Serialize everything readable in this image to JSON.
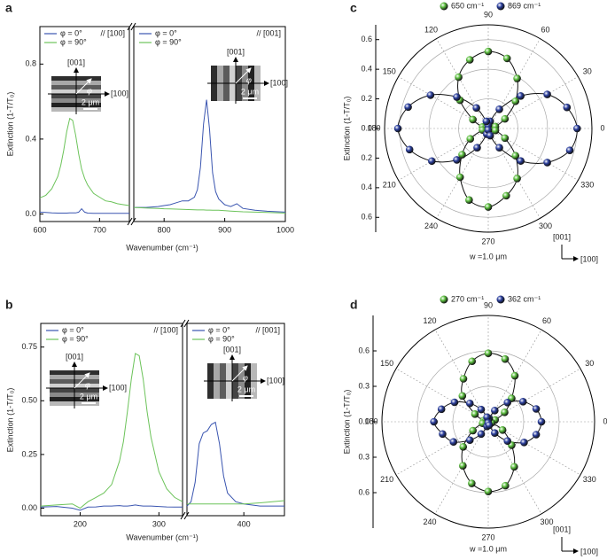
{
  "chart_data": [
    {
      "type": "line",
      "label": "a",
      "xlabel": "Wavenumber (cm⁻¹)",
      "ylabel": "Extinction (1-T/T₀)",
      "annotation": "// [100]",
      "inset": {
        "stripes": "horizontal",
        "labels": [
          "[001]",
          "[100]",
          "φ",
          "2 μm"
        ]
      },
      "xlim": [
        600,
        750
      ],
      "xticks": [
        600,
        700
      ],
      "ylim": [
        -0.04,
        1.0
      ],
      "yticks": [
        {
          "value": 0,
          "label": "0.0"
        },
        0.4,
        0.8
      ],
      "x": [
        600,
        610,
        620,
        630,
        635,
        640,
        645,
        650,
        655,
        660,
        665,
        670,
        675,
        680,
        690,
        700,
        710,
        720,
        730,
        740,
        750
      ],
      "series": [
        {
          "name": "φ = 0°",
          "color": "#3a55b0",
          "values": [
            0.01,
            0.008,
            0.006,
            0.005,
            0.005,
            0.005,
            0.005,
            0.006,
            0.006,
            0.006,
            0.01,
            0.028,
            0.01,
            0.005,
            0.004,
            0.004,
            0.004,
            0.004,
            0.004,
            0.004,
            0.004
          ]
        },
        {
          "name": "φ = 90°",
          "color": "#6cc35a",
          "values": [
            0.086,
            0.1,
            0.135,
            0.2,
            0.26,
            0.34,
            0.44,
            0.51,
            0.5,
            0.42,
            0.32,
            0.24,
            0.19,
            0.155,
            0.11,
            0.09,
            0.07,
            0.065,
            0.055,
            0.05,
            0.045
          ]
        }
      ]
    },
    {
      "type": "line",
      "annotation": "// [001]",
      "inset": {
        "stripes": "vertical",
        "labels": [
          "[001]",
          "[100]",
          "φ",
          "2 μm"
        ]
      },
      "xlim": [
        750,
        1000
      ],
      "xticks": [
        800,
        900,
        1000
      ],
      "ylim": [
        -0.04,
        1.0
      ],
      "x": [
        750,
        770,
        790,
        800,
        810,
        820,
        830,
        840,
        850,
        855,
        860,
        865,
        870,
        875,
        880,
        885,
        890,
        900,
        910,
        920,
        930,
        950,
        970,
        1000
      ],
      "series": [
        {
          "name": "φ = 0°",
          "color": "#3a55b0",
          "values": [
            0.035,
            0.035,
            0.04,
            0.045,
            0.05,
            0.06,
            0.07,
            0.07,
            0.09,
            0.13,
            0.25,
            0.48,
            0.61,
            0.45,
            0.22,
            0.12,
            0.08,
            0.05,
            0.04,
            0.055,
            0.03,
            0.02,
            0.015,
            0.01
          ]
        },
        {
          "name": "φ = 90°",
          "color": "#6cc35a",
          "values": [
            0.035,
            0.032,
            0.03,
            0.028,
            0.027,
            0.026,
            0.025,
            0.024,
            0.023,
            0.022,
            0.022,
            0.022,
            0.021,
            0.021,
            0.02,
            0.02,
            0.02,
            0.018,
            0.016,
            0.014,
            0.012,
            0.01,
            0.008,
            0.005
          ]
        }
      ]
    },
    {
      "type": "line",
      "label": "b",
      "xlabel": "Wavenumber (cm⁻¹)",
      "ylabel": "Extinction (1-T/T₀)",
      "annotation": "// [100]",
      "inset": {
        "stripes": "horizontal",
        "labels": [
          "[001]",
          "[100]",
          "φ",
          "2 μm"
        ]
      },
      "xlim": [
        150,
        330
      ],
      "xticks": [
        200,
        300
      ],
      "ylim": [
        -0.035,
        0.86
      ],
      "yticks": [
        {
          "value": 0,
          "label": "0.00"
        },
        0.25,
        {
          "value": 0.5,
          "label": "0.50"
        },
        0.75
      ],
      "x": [
        150,
        170,
        190,
        200,
        210,
        220,
        230,
        240,
        250,
        255,
        260,
        265,
        270,
        275,
        280,
        285,
        290,
        300,
        310,
        320,
        330
      ],
      "series": [
        {
          "name": "φ = 0°",
          "color": "#3a55b0",
          "values": [
            0.005,
            0.008,
            0.0,
            -0.01,
            0.005,
            0.006,
            0.01,
            0.01,
            0.012,
            0.01,
            0.01,
            0.012,
            0.015,
            0.012,
            0.01,
            0.01,
            0.01,
            0.008,
            0.006,
            0.005,
            0.005
          ]
        },
        {
          "name": "φ = 90°",
          "color": "#6cc35a",
          "values": [
            0.01,
            0.015,
            0.02,
            0.0,
            0.03,
            0.05,
            0.07,
            0.11,
            0.22,
            0.31,
            0.45,
            0.6,
            0.72,
            0.71,
            0.6,
            0.45,
            0.33,
            0.17,
            0.09,
            0.05,
            0.03
          ]
        }
      ]
    },
    {
      "type": "line",
      "annotation": "// [001]",
      "inset": {
        "stripes": "vertical",
        "labels": [
          "[001]",
          "[100]",
          "φ",
          "2 μm"
        ]
      },
      "xlim": [
        330,
        450
      ],
      "xticks": [
        400
      ],
      "ylim": [
        -0.035,
        0.86
      ],
      "x": [
        330,
        335,
        340,
        345,
        350,
        355,
        360,
        365,
        370,
        375,
        380,
        390,
        400,
        420,
        450
      ],
      "series": [
        {
          "name": "φ = 0°",
          "color": "#3a55b0",
          "values": [
            0.01,
            0.03,
            0.12,
            0.3,
            0.35,
            0.36,
            0.39,
            0.4,
            0.3,
            0.15,
            0.07,
            0.03,
            0.02,
            0.01,
            0.01
          ]
        },
        {
          "name": "φ = 90°",
          "color": "#6cc35a",
          "values": [
            0.02,
            0.02,
            0.02,
            0.02,
            0.02,
            0.02,
            0.02,
            0.02,
            0.02,
            0.02,
            0.02,
            0.02,
            0.02,
            0.025,
            0.035
          ]
        }
      ]
    },
    {
      "type": "polar",
      "label": "c",
      "ylabel": "Extinction (1-T/T₀)",
      "note": "w =1.0 μm",
      "directions": [
        "[001]",
        "[100]"
      ],
      "rlim": [
        0,
        0.7
      ],
      "rticks": [
        {
          "value": 0,
          "label": "0.0"
        },
        0.2,
        0.4,
        0.6
      ],
      "angle_ticks": [
        0,
        30,
        60,
        90,
        120,
        150,
        180,
        210,
        240,
        270,
        300,
        330
      ],
      "theta": [
        0,
        15,
        30,
        45,
        60,
        75,
        90,
        105,
        120,
        135,
        150,
        165,
        180,
        195,
        210,
        225,
        240,
        255,
        270,
        285,
        300,
        315,
        330,
        345
      ],
      "series": [
        {
          "name": "650 cm⁻¹",
          "color": "#5cbf3f",
          "values": [
            0.02,
            0.05,
            0.13,
            0.26,
            0.39,
            0.49,
            0.52,
            0.48,
            0.4,
            0.27,
            0.12,
            0.04,
            0.01,
            0.04,
            0.14,
            0.25,
            0.38,
            0.5,
            0.53,
            0.47,
            0.39,
            0.26,
            0.13,
            0.05
          ]
        },
        {
          "name": "869 cm⁻¹",
          "color": "#2b3f9e",
          "values": [
            0.6,
            0.55,
            0.46,
            0.31,
            0.15,
            0.05,
            0.02,
            0.05,
            0.16,
            0.3,
            0.45,
            0.56,
            0.61,
            0.55,
            0.44,
            0.3,
            0.15,
            0.04,
            0.01,
            0.05,
            0.15,
            0.31,
            0.46,
            0.57
          ]
        }
      ]
    },
    {
      "type": "polar",
      "label": "d",
      "ylabel": "Extinction (1-T/T₀)",
      "note": "w =1.0 μm",
      "directions": [
        "[001]",
        "[100]"
      ],
      "rlim": [
        0,
        0.9
      ],
      "rticks": [
        {
          "value": 0,
          "label": "0.0"
        },
        0.3,
        0.6
      ],
      "angle_ticks": [
        0,
        30,
        60,
        90,
        120,
        150,
        180,
        210,
        240,
        270,
        300,
        330
      ],
      "theta": [
        0,
        15,
        30,
        45,
        60,
        75,
        90,
        105,
        120,
        135,
        150,
        165,
        180,
        195,
        210,
        225,
        240,
        255,
        270,
        285,
        300,
        315,
        330,
        345
      ],
      "series": [
        {
          "name": "270 cm⁻¹",
          "color": "#5cbf3f",
          "values": [
            0.02,
            0.06,
            0.16,
            0.28,
            0.45,
            0.55,
            0.58,
            0.53,
            0.42,
            0.31,
            0.13,
            0.04,
            0.03,
            0.05,
            0.15,
            0.3,
            0.43,
            0.54,
            0.59,
            0.56,
            0.44,
            0.28,
            0.14,
            0.03
          ]
        },
        {
          "name": "362 cm⁻¹",
          "color": "#2b3f9e",
          "values": [
            0.45,
            0.42,
            0.34,
            0.23,
            0.11,
            0.03,
            0.02,
            0.04,
            0.12,
            0.22,
            0.33,
            0.41,
            0.46,
            0.4,
            0.34,
            0.22,
            0.12,
            0.04,
            0.01,
            0.03,
            0.11,
            0.23,
            0.35,
            0.42
          ]
        }
      ]
    }
  ]
}
